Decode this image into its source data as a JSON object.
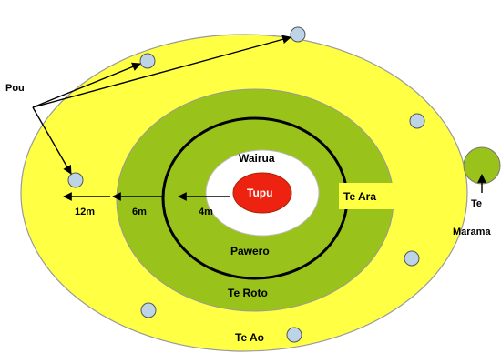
{
  "colors": {
    "outer_ring": "#ffff44",
    "green_ring": "#99c21a",
    "black_ring": "#000000",
    "white_ring": "#ffffff",
    "core": "#ee2211",
    "pou_fill": "#bcd4e6",
    "moon": "#99c21a",
    "outline": "#888888",
    "arrow": "#000000"
  },
  "labels": {
    "pou": "Pou",
    "wairua": "Wairua",
    "tupu": "Tupu",
    "te_ara": "Te Ara",
    "pawero": "Pawero",
    "te_roto": "Te Roto",
    "te_ao": "Te Ao",
    "te": "Te",
    "marama": "Marama",
    "dist_12m": "12m",
    "dist_6m": "6m",
    "dist_4m": "4m"
  }
}
